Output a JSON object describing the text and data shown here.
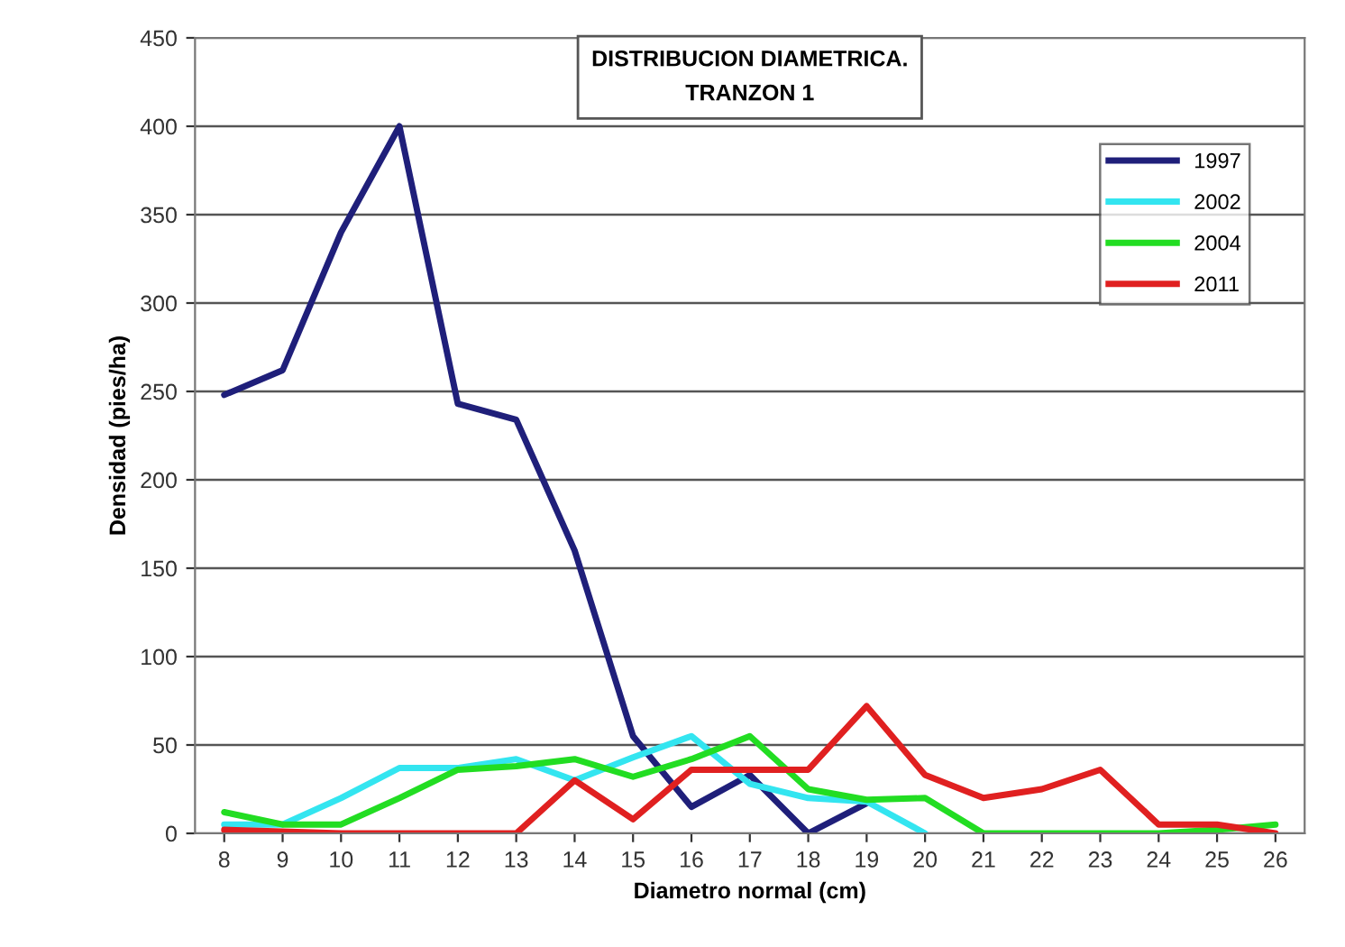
{
  "chart_data": {
    "type": "line",
    "title": "DISTRIBUCION DIAMETRICA.\nTRANZON 1",
    "xlabel": "Diametro normal (cm)",
    "ylabel": "Densidad (pies/ha)",
    "categories": [
      "8",
      "9",
      "10",
      "11",
      "12",
      "13",
      "14",
      "15",
      "16",
      "17",
      "18",
      "19",
      "20",
      "21",
      "22",
      "23",
      "24",
      "25",
      "26"
    ],
    "series": [
      {
        "name": "1997",
        "color": "#1f1f7a",
        "values": [
          248,
          262,
          340,
          400,
          243,
          234,
          160,
          55,
          15,
          33,
          0,
          17,
          null,
          null,
          null,
          null,
          null,
          null,
          null
        ]
      },
      {
        "name": "2002",
        "color": "#33e5f0",
        "values": [
          5,
          5,
          20,
          37,
          37,
          42,
          30,
          43,
          55,
          28,
          20,
          18,
          0,
          null,
          null,
          null,
          null,
          null,
          null
        ]
      },
      {
        "name": "2004",
        "color": "#22dd22",
        "values": [
          12,
          5,
          5,
          20,
          36,
          38,
          42,
          32,
          42,
          55,
          25,
          19,
          20,
          0,
          0,
          0,
          0,
          2,
          5
        ]
      },
      {
        "name": "2011",
        "color": "#e02020",
        "values": [
          2,
          1,
          0,
          0,
          0,
          0,
          30,
          8,
          36,
          36,
          36,
          72,
          33,
          20,
          25,
          36,
          5,
          5,
          0
        ]
      }
    ],
    "ylim": [
      0,
      450
    ],
    "yticks": [
      0,
      50,
      100,
      150,
      200,
      250,
      300,
      350,
      400,
      450
    ],
    "grid": "y",
    "legend": "top right",
    "marker": "none",
    "line_style": "solid"
  }
}
